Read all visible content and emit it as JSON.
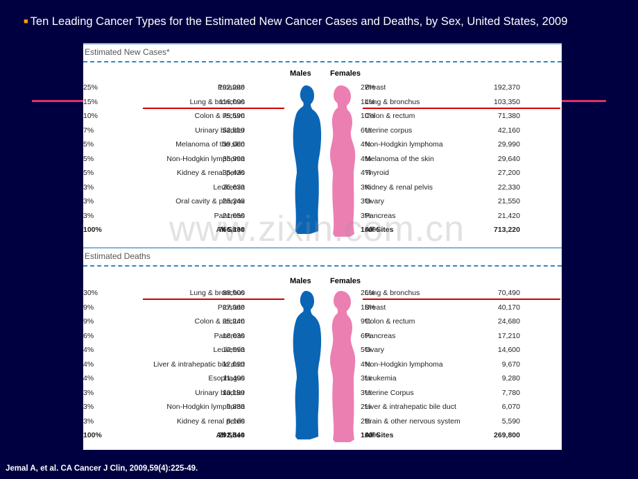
{
  "title": "Ten Leading Cancer Types for the Estimated New Cancer Cases and Deaths, by Sex, United States, 2009",
  "citation": "Jemal A, et al.  CA Cancer J Clin, 2009,59(4):225-49.",
  "watermark": "www.zixin.com.cn",
  "colors": {
    "background": "#000040",
    "male": "#0b65b5",
    "female": "#ec7fb2",
    "highlight": "#d00000",
    "accent_line": "#e0306a"
  },
  "new_cases": {
    "label": "Estimated New Cases*",
    "males_label": "Males",
    "females_label": "Females",
    "males": [
      {
        "site": "Prostate",
        "n": "192,280",
        "pct": "25%"
      },
      {
        "site": "Lung & bronchus",
        "n": "116,090",
        "pct": "15%"
      },
      {
        "site": "Colon & rectum",
        "n": "75,590",
        "pct": "10%"
      },
      {
        "site": "Urinary bladder",
        "n": "52,810",
        "pct": "7%"
      },
      {
        "site": "Melanoma of the skin",
        "n": "39,080",
        "pct": "5%"
      },
      {
        "site": "Non-Hodgkin lymphoma",
        "n": "35,990",
        "pct": "5%"
      },
      {
        "site": "Kidney & renal pelvis",
        "n": "35,430",
        "pct": "5%"
      },
      {
        "site": "Leukemia",
        "n": "25,630",
        "pct": "3%"
      },
      {
        "site": "Oral cavity & pharynx",
        "n": "25,240",
        "pct": "3%"
      },
      {
        "site": "Pancreas",
        "n": "21,050",
        "pct": "3%"
      },
      {
        "site": "All Sites",
        "n": "766,130",
        "pct": "100%"
      }
    ],
    "females": [
      {
        "site": "Breast",
        "n": "192,370",
        "pct": "27%"
      },
      {
        "site": "Lung & bronchus",
        "n": "103,350",
        "pct": "14%"
      },
      {
        "site": "Colon & rectum",
        "n": "71,380",
        "pct": "10%"
      },
      {
        "site": "Uterine corpus",
        "n": "42,160",
        "pct": "6%"
      },
      {
        "site": "Non-Hodgkin lymphoma",
        "n": "29,990",
        "pct": "4%"
      },
      {
        "site": "Melanoma of the skin",
        "n": "29,640",
        "pct": "4%"
      },
      {
        "site": "Thyroid",
        "n": "27,200",
        "pct": "4%"
      },
      {
        "site": "Kidney & renal pelvis",
        "n": "22,330",
        "pct": "3%"
      },
      {
        "site": "Ovary",
        "n": "21,550",
        "pct": "3%"
      },
      {
        "site": "Pancreas",
        "n": "21,420",
        "pct": "3%"
      },
      {
        "site": "All Sites",
        "n": "713,220",
        "pct": "100%"
      }
    ]
  },
  "deaths": {
    "label": "Estimated Deaths",
    "males_label": "Males",
    "females_label": "Females",
    "males": [
      {
        "site": "Lung & bronchus",
        "n": "88,900",
        "pct": "30%"
      },
      {
        "site": "Prostate",
        "n": "27,360",
        "pct": "9%"
      },
      {
        "site": "Colon & rectum",
        "n": "25,240",
        "pct": "9%"
      },
      {
        "site": "Pancreas",
        "n": "18,030",
        "pct": "6%"
      },
      {
        "site": "Leukemia",
        "n": "12,590",
        "pct": "4%"
      },
      {
        "site": "Liver & intrahepatic bile duct",
        "n": "12,090",
        "pct": "4%"
      },
      {
        "site": "Esophagus",
        "n": "11,490",
        "pct": "4%"
      },
      {
        "site": "Urinary bladder",
        "n": "10,180",
        "pct": "3%"
      },
      {
        "site": "Non-Hodgkin lymphoma",
        "n": "9,830",
        "pct": "3%"
      },
      {
        "site": "Kidney & renal pelvis",
        "n": "8,160",
        "pct": "3%"
      },
      {
        "site": "All Sites",
        "n": "292,540",
        "pct": "100%"
      }
    ],
    "females": [
      {
        "site": "Lung & bronchus",
        "n": "70,490",
        "pct": "26%"
      },
      {
        "site": "Breast",
        "n": "40,170",
        "pct": "15%"
      },
      {
        "site": "Colon & rectum",
        "n": "24,680",
        "pct": "9%"
      },
      {
        "site": "Pancreas",
        "n": "17,210",
        "pct": "6%"
      },
      {
        "site": "Ovary",
        "n": "14,600",
        "pct": "5%"
      },
      {
        "site": "Non-Hodgkin lymphoma",
        "n": "9,670",
        "pct": "4%"
      },
      {
        "site": "Leukemia",
        "n": "9,280",
        "pct": "3%"
      },
      {
        "site": "Uterine Corpus",
        "n": "7,780",
        "pct": "3%"
      },
      {
        "site": "Liver & intrahepatic bile duct",
        "n": "6,070",
        "pct": "2%"
      },
      {
        "site": "Brain & other nervous system",
        "n": "5,590",
        "pct": "2%"
      },
      {
        "site": "All Sites",
        "n": "269,800",
        "pct": "100%"
      }
    ]
  }
}
